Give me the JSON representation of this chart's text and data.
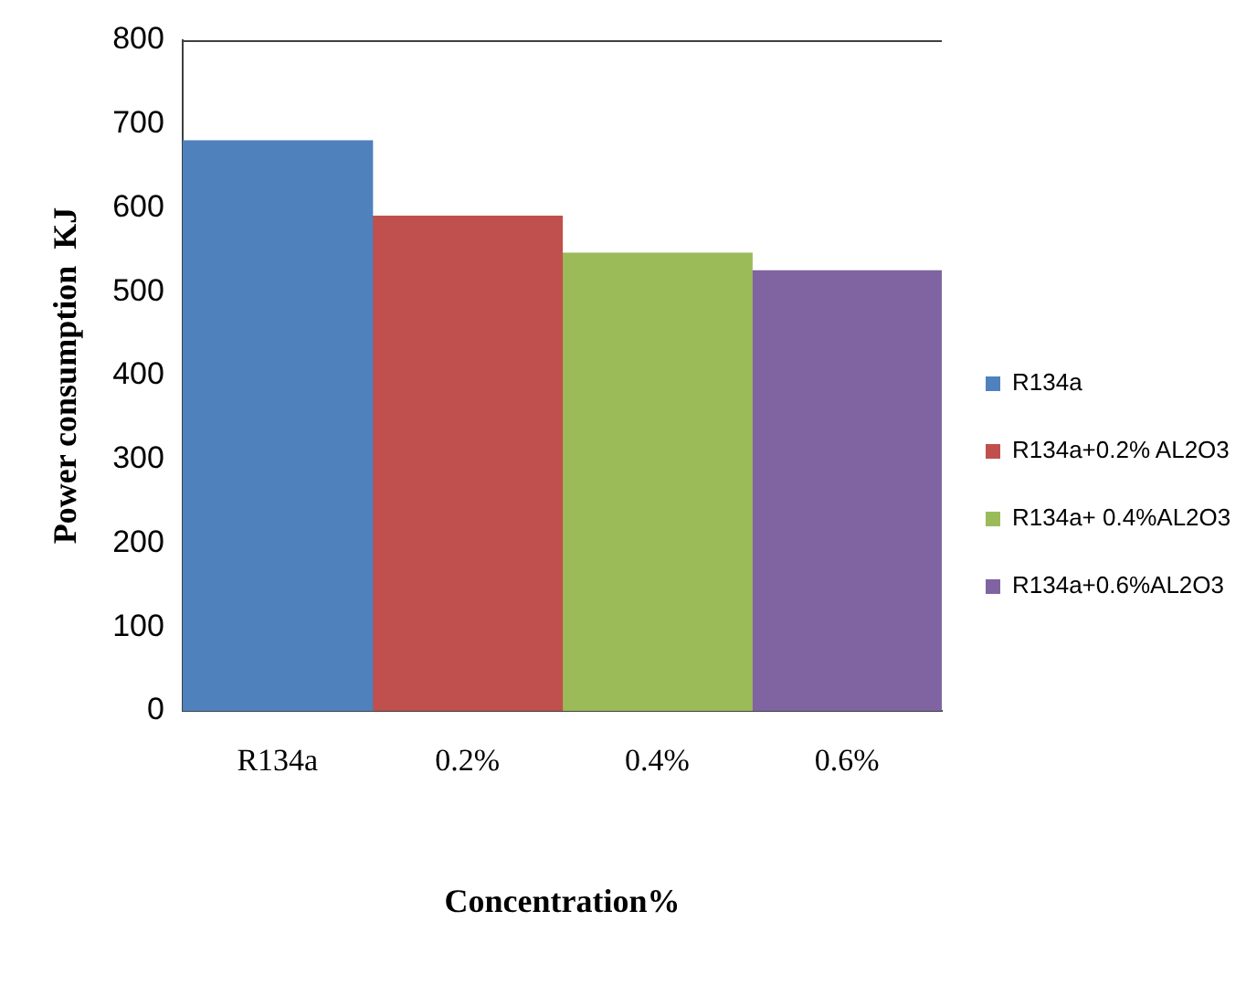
{
  "chart_data": {
    "type": "bar",
    "xlabel": "Concentration%",
    "ylabel": "Power consumption  KJ",
    "categories": [
      "R134a",
      "0.2%",
      "0.4%",
      "0.6%"
    ],
    "series": [
      {
        "name": "R134a",
        "color": "#4f81bd",
        "values": [
          680,
          null,
          null,
          null
        ]
      },
      {
        "name": "R134a+0.2% AL2O3",
        "color": "#c0504d",
        "values": [
          null,
          590,
          null,
          null
        ]
      },
      {
        "name": "R134a+ 0.4%AL2O3",
        "color": "#9bbb59",
        "values": [
          null,
          null,
          546,
          null
        ]
      },
      {
        "name": "R134a+0.6%AL2O3",
        "color": "#8064a2",
        "values": [
          null,
          null,
          null,
          525
        ]
      }
    ],
    "ylim": [
      0,
      800
    ],
    "yticks": [
      0,
      100,
      200,
      300,
      400,
      500,
      600,
      700,
      800
    ],
    "grid": false,
    "legend": "right"
  }
}
